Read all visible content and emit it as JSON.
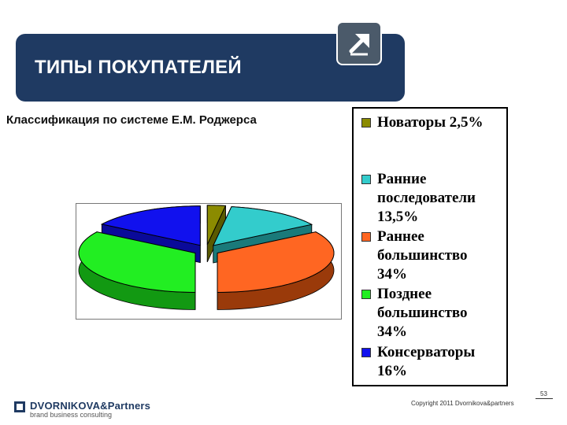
{
  "header": {
    "title": "ТИПЫ ПОКУПАТЕЛЕЙ"
  },
  "subtitle": "Классификация по системе Е.М. Роджерса",
  "chart_data": {
    "type": "pie",
    "three_d": true,
    "exploded": true,
    "categories": [
      "Новаторы",
      "Ранние последователи",
      "Раннее большинство",
      "Позднее большинство",
      "Консерваторы"
    ],
    "values": [
      2.5,
      13.5,
      34,
      34,
      16
    ],
    "unit": "%",
    "colors": [
      "#8b8b00",
      "#33cccc",
      "#ff6622",
      "#22ee22",
      "#1111ee"
    ],
    "side_colors": [
      "#5a5a00",
      "#1a7a7a",
      "#9a3a0a",
      "#129912",
      "#0a0a99"
    ],
    "legend_placement": "right",
    "legend": [
      {
        "label": "Новаторы 2,5%"
      },
      {
        "label": "Ранние последователи 13,5%"
      },
      {
        "label": "Раннее большинство 34%"
      },
      {
        "label": "Позднее большинство 34%"
      },
      {
        "label": "Консерваторы 16%"
      }
    ]
  },
  "footer": {
    "logo_main": "DVORNIKOVA&Partners",
    "logo_tagline": "brand business consulting",
    "copyright": "Copyright 2011 Dvornikova&partners",
    "page": "53"
  },
  "icons": {
    "header_button": "arrow-up-right-icon"
  },
  "theme": {
    "header_bg": "#1f3a62"
  }
}
